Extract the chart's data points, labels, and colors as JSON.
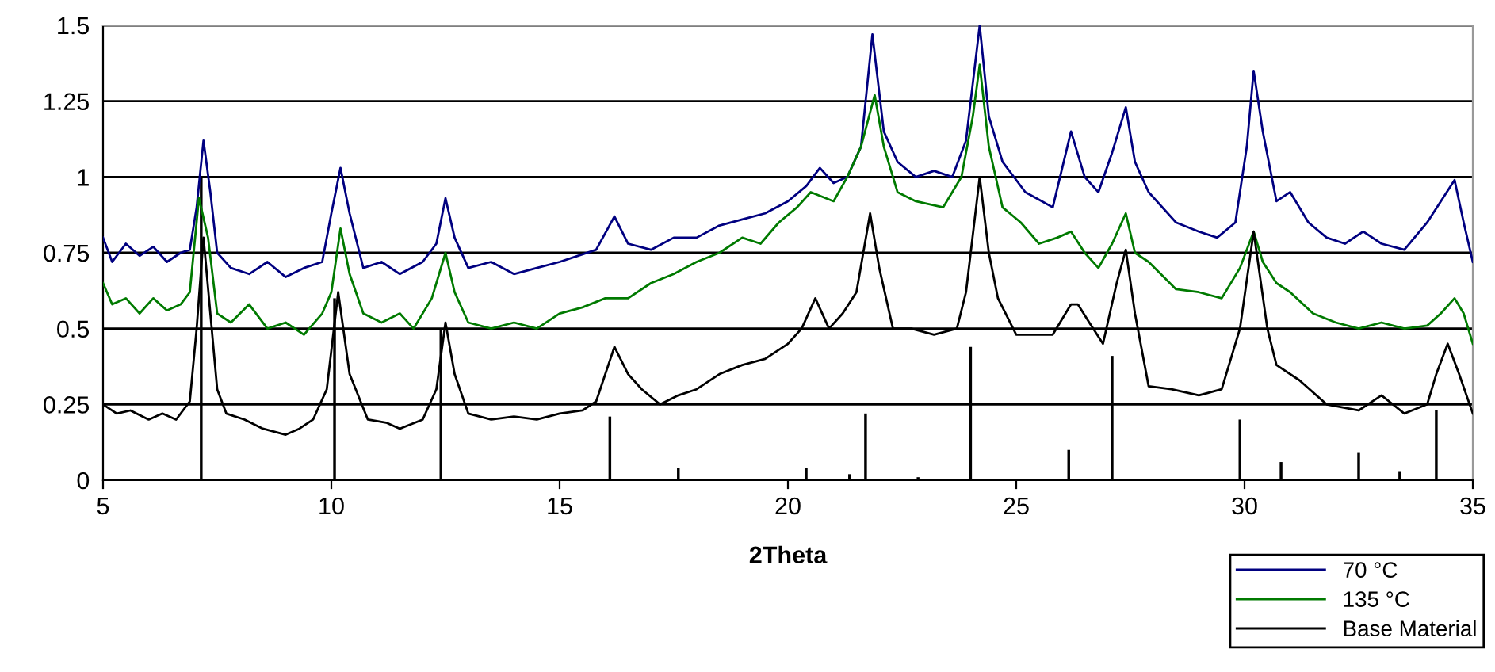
{
  "chart_data": {
    "type": "line",
    "xlabel": "2Theta",
    "xlim": [
      5,
      35
    ],
    "xticks": [
      5,
      10,
      15,
      20,
      25,
      30,
      35
    ],
    "ylim": [
      0,
      1.5
    ],
    "yticks": [
      0,
      0.25,
      0.5,
      0.75,
      1,
      1.25,
      1.5
    ],
    "grid": "y",
    "legend": "bottom right",
    "marker": "none",
    "line_style": "solid",
    "series": [
      {
        "name": "70 °C",
        "color": "#000080",
        "x": [
          5,
          5.2,
          5.5,
          5.8,
          6.1,
          6.4,
          6.7,
          6.9,
          7.05,
          7.2,
          7.35,
          7.5,
          7.8,
          8.2,
          8.6,
          9,
          9.4,
          9.8,
          10,
          10.2,
          10.4,
          10.7,
          11.1,
          11.5,
          12,
          12.3,
          12.5,
          12.7,
          13,
          13.5,
          14,
          14.5,
          15,
          15.4,
          15.8,
          16.2,
          16.5,
          17,
          17.5,
          18,
          18.5,
          19,
          19.5,
          20,
          20.4,
          20.7,
          21,
          21.3,
          21.6,
          21.85,
          22.1,
          22.4,
          22.8,
          23.2,
          23.6,
          23.9,
          24.2,
          24.4,
          24.7,
          25.2,
          25.8,
          26.2,
          26.5,
          26.8,
          27.1,
          27.4,
          27.6,
          27.9,
          28.5,
          29,
          29.4,
          29.8,
          30.05,
          30.2,
          30.4,
          30.7,
          31,
          31.4,
          31.8,
          32.2,
          32.6,
          33,
          33.5,
          34,
          34.3,
          34.6,
          34.8,
          35
        ],
        "values": [
          0.8,
          0.72,
          0.78,
          0.74,
          0.77,
          0.72,
          0.75,
          0.76,
          0.9,
          1.12,
          0.95,
          0.75,
          0.7,
          0.68,
          0.72,
          0.67,
          0.7,
          0.72,
          0.88,
          1.03,
          0.88,
          0.7,
          0.72,
          0.68,
          0.72,
          0.78,
          0.93,
          0.8,
          0.7,
          0.72,
          0.68,
          0.7,
          0.72,
          0.74,
          0.76,
          0.87,
          0.78,
          0.76,
          0.8,
          0.8,
          0.84,
          0.86,
          0.88,
          0.92,
          0.97,
          1.03,
          0.98,
          1.0,
          1.1,
          1.47,
          1.15,
          1.05,
          1.0,
          1.02,
          1.0,
          1.12,
          1.5,
          1.2,
          1.05,
          0.95,
          0.9,
          1.15,
          1.0,
          0.95,
          1.08,
          1.23,
          1.05,
          0.95,
          0.85,
          0.82,
          0.8,
          0.85,
          1.1,
          1.35,
          1.15,
          0.92,
          0.95,
          0.85,
          0.8,
          0.78,
          0.82,
          0.78,
          0.76,
          0.85,
          0.92,
          0.99,
          0.85,
          0.72
        ]
      },
      {
        "name": "135 °C",
        "color": "#007a00",
        "x": [
          5,
          5.2,
          5.5,
          5.8,
          6.1,
          6.4,
          6.7,
          6.9,
          7.1,
          7.3,
          7.5,
          7.8,
          8.2,
          8.6,
          9,
          9.4,
          9.8,
          10,
          10.2,
          10.4,
          10.7,
          11.1,
          11.5,
          11.8,
          12.2,
          12.5,
          12.7,
          13,
          13.5,
          14,
          14.5,
          15,
          15.5,
          16,
          16.5,
          17,
          17.5,
          18,
          18.5,
          19,
          19.4,
          19.8,
          20.2,
          20.5,
          21,
          21.3,
          21.6,
          21.9,
          22.1,
          22.4,
          22.8,
          23.4,
          23.8,
          24.05,
          24.2,
          24.4,
          24.7,
          25.1,
          25.5,
          25.9,
          26.2,
          26.5,
          26.8,
          27.1,
          27.4,
          27.6,
          27.9,
          28.5,
          29,
          29.5,
          29.9,
          30.2,
          30.4,
          30.7,
          31,
          31.5,
          32,
          32.5,
          33,
          33.5,
          34,
          34.3,
          34.6,
          34.8,
          35
        ],
        "values": [
          0.65,
          0.58,
          0.6,
          0.55,
          0.6,
          0.56,
          0.58,
          0.62,
          0.93,
          0.8,
          0.55,
          0.52,
          0.58,
          0.5,
          0.52,
          0.48,
          0.55,
          0.62,
          0.83,
          0.68,
          0.55,
          0.52,
          0.55,
          0.5,
          0.6,
          0.75,
          0.62,
          0.52,
          0.5,
          0.52,
          0.5,
          0.55,
          0.57,
          0.6,
          0.6,
          0.65,
          0.68,
          0.72,
          0.75,
          0.8,
          0.78,
          0.85,
          0.9,
          0.95,
          0.92,
          1.0,
          1.1,
          1.27,
          1.1,
          0.95,
          0.92,
          0.9,
          1.0,
          1.2,
          1.37,
          1.1,
          0.9,
          0.85,
          0.78,
          0.8,
          0.82,
          0.75,
          0.7,
          0.78,
          0.88,
          0.75,
          0.72,
          0.63,
          0.62,
          0.6,
          0.7,
          0.82,
          0.72,
          0.65,
          0.62,
          0.55,
          0.52,
          0.5,
          0.52,
          0.5,
          0.51,
          0.55,
          0.6,
          0.55,
          0.45
        ]
      },
      {
        "name": "Base Material",
        "color": "#000000",
        "x": [
          5,
          5.3,
          5.6,
          6,
          6.3,
          6.6,
          6.9,
          7.05,
          7.2,
          7.35,
          7.5,
          7.7,
          8.1,
          8.5,
          9,
          9.3,
          9.6,
          9.9,
          10.15,
          10.4,
          10.8,
          11.2,
          11.5,
          12,
          12.3,
          12.5,
          12.7,
          13,
          13.5,
          14,
          14.5,
          15,
          15.5,
          15.8,
          16.2,
          16.5,
          16.8,
          17.2,
          17.6,
          18,
          18.5,
          19,
          19.5,
          20,
          20.3,
          20.6,
          20.9,
          21.2,
          21.5,
          21.8,
          22,
          22.3,
          22.7,
          23.2,
          23.7,
          23.9,
          24.2,
          24.4,
          24.6,
          25,
          25.4,
          25.8,
          26.2,
          26.35,
          26.6,
          26.9,
          27.2,
          27.4,
          27.6,
          27.9,
          28.4,
          29,
          29.5,
          29.9,
          30.2,
          30.5,
          30.7,
          31.2,
          31.8,
          32.5,
          33,
          33.5,
          34,
          34.2,
          34.45,
          34.7,
          35
        ],
        "values": [
          0.25,
          0.22,
          0.23,
          0.2,
          0.22,
          0.2,
          0.26,
          0.5,
          0.8,
          0.55,
          0.3,
          0.22,
          0.2,
          0.17,
          0.15,
          0.17,
          0.2,
          0.3,
          0.62,
          0.35,
          0.2,
          0.19,
          0.17,
          0.2,
          0.3,
          0.52,
          0.35,
          0.22,
          0.2,
          0.21,
          0.2,
          0.22,
          0.23,
          0.26,
          0.44,
          0.35,
          0.3,
          0.25,
          0.28,
          0.3,
          0.35,
          0.38,
          0.4,
          0.45,
          0.5,
          0.6,
          0.5,
          0.55,
          0.62,
          0.88,
          0.7,
          0.5,
          0.5,
          0.48,
          0.5,
          0.62,
          1.0,
          0.75,
          0.6,
          0.48,
          0.48,
          0.48,
          0.58,
          0.58,
          0.52,
          0.45,
          0.65,
          0.76,
          0.55,
          0.31,
          0.3,
          0.28,
          0.3,
          0.5,
          0.82,
          0.5,
          0.38,
          0.33,
          0.25,
          0.23,
          0.28,
          0.22,
          0.25,
          0.35,
          0.45,
          0.35,
          0.22
        ]
      },
      {
        "type": "bar",
        "color": "#000000",
        "x": [
          7.15,
          10.07,
          12.4,
          16.1,
          17.6,
          20.4,
          21.35,
          21.7,
          22.85,
          24.0,
          26.15,
          27.1,
          29.9,
          30.8,
          32.5,
          33.4,
          34.2
        ],
        "values": [
          1.0,
          0.6,
          0.5,
          0.21,
          0.04,
          0.04,
          0.02,
          0.22,
          0.01,
          0.44,
          0.1,
          0.41,
          0.2,
          0.06,
          0.09,
          0.03,
          0.23
        ]
      }
    ]
  }
}
